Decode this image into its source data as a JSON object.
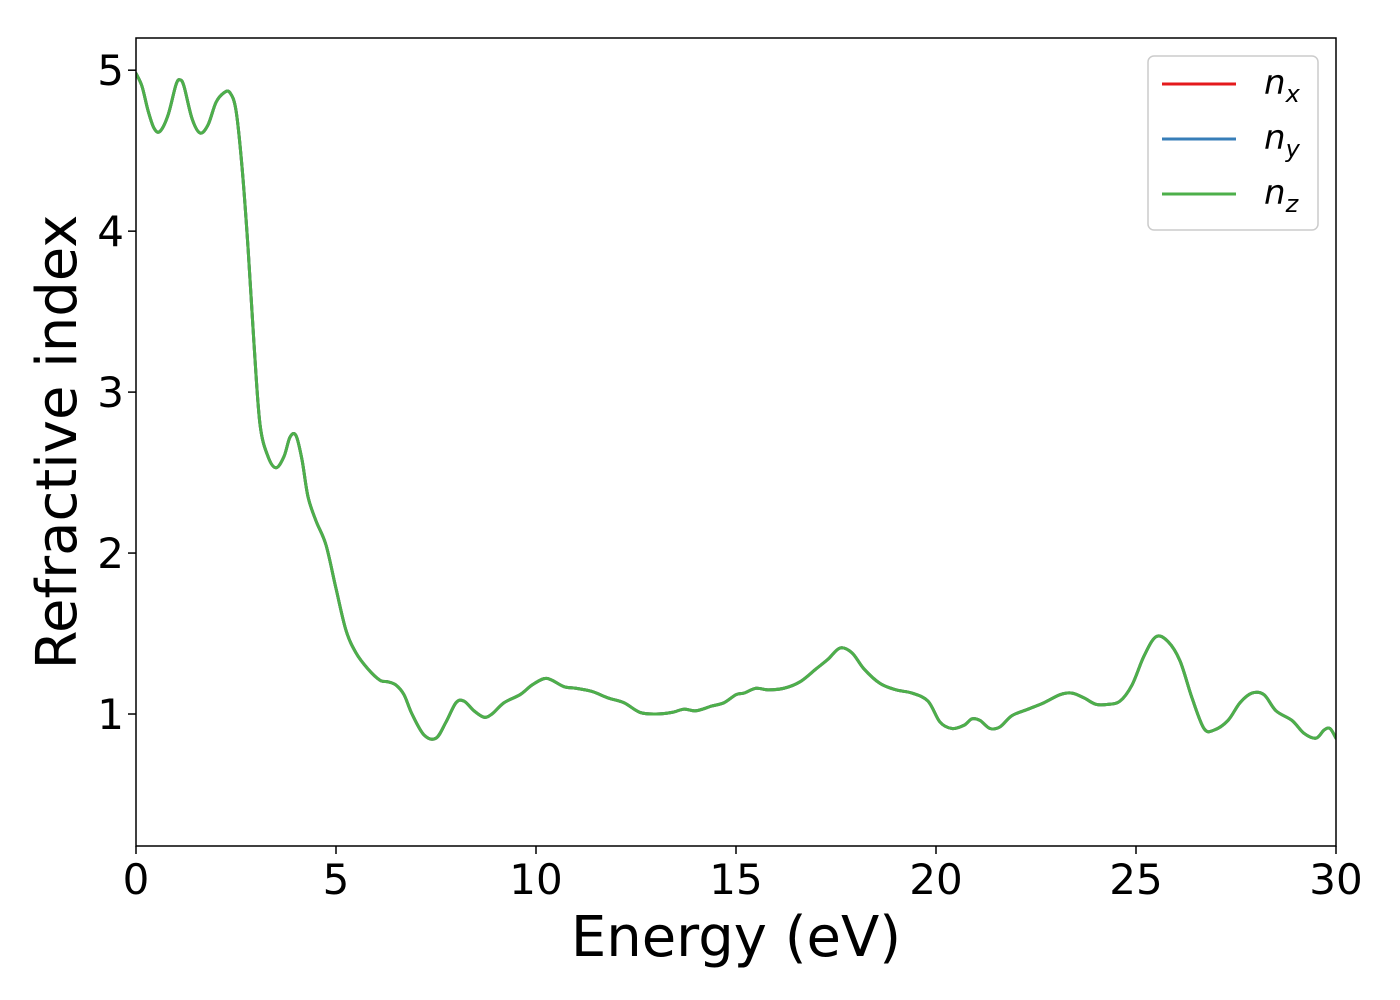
{
  "chart_data": {
    "type": "line",
    "xlabel": "Energy (eV)",
    "ylabel": "Refractive index",
    "xlim": [
      0,
      30
    ],
    "ylim": [
      0.18,
      5.2
    ],
    "xticks": [
      0,
      5,
      10,
      15,
      20,
      25,
      30
    ],
    "yticks": [
      1,
      2,
      3,
      4,
      5
    ],
    "grid": false,
    "legend_position": "top-right",
    "series": [
      {
        "name": "n",
        "subscript": "x",
        "color": "#e41a1c",
        "x": [
          0,
          0.15,
          0.3,
          0.45,
          0.6,
          0.8,
          1.0,
          1.1,
          1.2,
          1.4,
          1.6,
          1.8,
          2.0,
          2.2,
          2.35,
          2.5,
          2.65,
          2.8,
          2.95,
          3.1,
          3.3,
          3.5,
          3.7,
          3.85,
          4.0,
          4.15,
          4.3,
          4.5,
          4.75,
          5.0,
          5.25,
          5.5,
          5.8,
          6.1,
          6.3,
          6.5,
          6.7,
          6.9,
          7.2,
          7.5,
          7.75,
          8.0,
          8.2,
          8.45,
          8.7,
          8.9,
          9.2,
          9.6,
          9.9,
          10.2,
          10.4,
          10.7,
          11.0,
          11.4,
          11.8,
          12.2,
          12.6,
          13.0,
          13.4,
          13.7,
          14.0,
          14.4,
          14.7,
          15.0,
          15.2,
          15.5,
          15.8,
          16.2,
          16.6,
          17.0,
          17.3,
          17.6,
          17.9,
          18.2,
          18.6,
          19.0,
          19.4,
          19.8,
          20.1,
          20.4,
          20.7,
          20.9,
          21.1,
          21.35,
          21.6,
          21.9,
          22.3,
          22.7,
          23.1,
          23.4,
          23.7,
          24.0,
          24.3,
          24.6,
          24.9,
          25.2,
          25.5,
          25.8,
          26.1,
          26.4,
          26.7,
          26.95,
          27.3,
          27.6,
          27.9,
          28.2,
          28.5,
          28.9,
          29.2,
          29.5,
          29.7,
          29.85,
          30.0
        ],
        "y": [
          4.98,
          4.9,
          4.75,
          4.64,
          4.62,
          4.72,
          4.91,
          4.94,
          4.9,
          4.7,
          4.61,
          4.66,
          4.8,
          4.86,
          4.86,
          4.75,
          4.4,
          3.9,
          3.3,
          2.8,
          2.6,
          2.53,
          2.6,
          2.72,
          2.73,
          2.58,
          2.35,
          2.2,
          2.05,
          1.78,
          1.52,
          1.38,
          1.28,
          1.21,
          1.2,
          1.18,
          1.12,
          1.0,
          0.87,
          0.85,
          0.95,
          1.07,
          1.08,
          1.02,
          0.98,
          1.0,
          1.07,
          1.12,
          1.18,
          1.22,
          1.21,
          1.17,
          1.16,
          1.14,
          1.1,
          1.07,
          1.01,
          1.0,
          1.01,
          1.03,
          1.02,
          1.05,
          1.07,
          1.12,
          1.13,
          1.16,
          1.15,
          1.16,
          1.2,
          1.28,
          1.34,
          1.41,
          1.38,
          1.28,
          1.19,
          1.15,
          1.13,
          1.08,
          0.95,
          0.91,
          0.93,
          0.97,
          0.96,
          0.91,
          0.92,
          0.99,
          1.03,
          1.07,
          1.12,
          1.13,
          1.1,
          1.06,
          1.06,
          1.08,
          1.18,
          1.36,
          1.48,
          1.45,
          1.33,
          1.1,
          0.91,
          0.9,
          0.96,
          1.07,
          1.13,
          1.12,
          1.02,
          0.96,
          0.88,
          0.85,
          0.9,
          0.91,
          0.85
        ]
      },
      {
        "name": "n",
        "subscript": "y",
        "color": "#377eb8",
        "x": [
          0,
          0.15,
          0.3,
          0.45,
          0.6,
          0.8,
          1.0,
          1.1,
          1.2,
          1.4,
          1.6,
          1.8,
          2.0,
          2.2,
          2.35,
          2.5,
          2.65,
          2.8,
          2.95,
          3.1,
          3.3,
          3.5,
          3.7,
          3.85,
          4.0,
          4.15,
          4.3,
          4.5,
          4.75,
          5.0,
          5.25,
          5.5,
          5.8,
          6.1,
          6.3,
          6.5,
          6.7,
          6.9,
          7.2,
          7.5,
          7.75,
          8.0,
          8.2,
          8.45,
          8.7,
          8.9,
          9.2,
          9.6,
          9.9,
          10.2,
          10.4,
          10.7,
          11.0,
          11.4,
          11.8,
          12.2,
          12.6,
          13.0,
          13.4,
          13.7,
          14.0,
          14.4,
          14.7,
          15.0,
          15.2,
          15.5,
          15.8,
          16.2,
          16.6,
          17.0,
          17.3,
          17.6,
          17.9,
          18.2,
          18.6,
          19.0,
          19.4,
          19.8,
          20.1,
          20.4,
          20.7,
          20.9,
          21.1,
          21.35,
          21.6,
          21.9,
          22.3,
          22.7,
          23.1,
          23.4,
          23.7,
          24.0,
          24.3,
          24.6,
          24.9,
          25.2,
          25.5,
          25.8,
          26.1,
          26.4,
          26.7,
          26.95,
          27.3,
          27.6,
          27.9,
          28.2,
          28.5,
          28.9,
          29.2,
          29.5,
          29.7,
          29.85,
          30.0
        ],
        "y": [
          4.98,
          4.9,
          4.75,
          4.64,
          4.62,
          4.72,
          4.91,
          4.94,
          4.9,
          4.7,
          4.61,
          4.66,
          4.8,
          4.86,
          4.86,
          4.75,
          4.4,
          3.9,
          3.3,
          2.8,
          2.6,
          2.53,
          2.6,
          2.72,
          2.73,
          2.58,
          2.35,
          2.2,
          2.05,
          1.78,
          1.52,
          1.38,
          1.28,
          1.21,
          1.2,
          1.18,
          1.12,
          1.0,
          0.87,
          0.85,
          0.95,
          1.07,
          1.08,
          1.02,
          0.98,
          1.0,
          1.07,
          1.12,
          1.18,
          1.22,
          1.21,
          1.17,
          1.16,
          1.14,
          1.1,
          1.07,
          1.01,
          1.0,
          1.01,
          1.03,
          1.02,
          1.05,
          1.07,
          1.12,
          1.13,
          1.16,
          1.15,
          1.16,
          1.2,
          1.28,
          1.34,
          1.41,
          1.38,
          1.28,
          1.19,
          1.15,
          1.13,
          1.08,
          0.95,
          0.91,
          0.93,
          0.97,
          0.96,
          0.91,
          0.92,
          0.99,
          1.03,
          1.07,
          1.12,
          1.13,
          1.1,
          1.06,
          1.06,
          1.08,
          1.18,
          1.36,
          1.48,
          1.45,
          1.33,
          1.1,
          0.91,
          0.9,
          0.96,
          1.07,
          1.13,
          1.12,
          1.02,
          0.96,
          0.88,
          0.85,
          0.9,
          0.91,
          0.85
        ]
      },
      {
        "name": "n",
        "subscript": "z",
        "color": "#4daf4a",
        "x": [
          0,
          0.15,
          0.3,
          0.45,
          0.6,
          0.8,
          1.0,
          1.1,
          1.2,
          1.4,
          1.6,
          1.8,
          2.0,
          2.2,
          2.35,
          2.5,
          2.65,
          2.8,
          2.95,
          3.1,
          3.3,
          3.5,
          3.7,
          3.85,
          4.0,
          4.15,
          4.3,
          4.5,
          4.75,
          5.0,
          5.25,
          5.5,
          5.8,
          6.1,
          6.3,
          6.5,
          6.7,
          6.9,
          7.2,
          7.5,
          7.75,
          8.0,
          8.2,
          8.45,
          8.7,
          8.9,
          9.2,
          9.6,
          9.9,
          10.2,
          10.4,
          10.7,
          11.0,
          11.4,
          11.8,
          12.2,
          12.6,
          13.0,
          13.4,
          13.7,
          14.0,
          14.4,
          14.7,
          15.0,
          15.2,
          15.5,
          15.8,
          16.2,
          16.6,
          17.0,
          17.3,
          17.6,
          17.9,
          18.2,
          18.6,
          19.0,
          19.4,
          19.8,
          20.1,
          20.4,
          20.7,
          20.9,
          21.1,
          21.35,
          21.6,
          21.9,
          22.3,
          22.7,
          23.1,
          23.4,
          23.7,
          24.0,
          24.3,
          24.6,
          24.9,
          25.2,
          25.5,
          25.8,
          26.1,
          26.4,
          26.7,
          26.95,
          27.3,
          27.6,
          27.9,
          28.2,
          28.5,
          28.9,
          29.2,
          29.5,
          29.7,
          29.85,
          30.0
        ],
        "y": [
          4.98,
          4.9,
          4.75,
          4.64,
          4.62,
          4.72,
          4.91,
          4.94,
          4.9,
          4.7,
          4.61,
          4.66,
          4.8,
          4.86,
          4.86,
          4.75,
          4.4,
          3.9,
          3.3,
          2.8,
          2.6,
          2.53,
          2.6,
          2.72,
          2.73,
          2.58,
          2.35,
          2.2,
          2.05,
          1.78,
          1.52,
          1.38,
          1.28,
          1.21,
          1.2,
          1.18,
          1.12,
          1.0,
          0.87,
          0.85,
          0.95,
          1.07,
          1.08,
          1.02,
          0.98,
          1.0,
          1.07,
          1.12,
          1.18,
          1.22,
          1.21,
          1.17,
          1.16,
          1.14,
          1.1,
          1.07,
          1.01,
          1.0,
          1.01,
          1.03,
          1.02,
          1.05,
          1.07,
          1.12,
          1.13,
          1.16,
          1.15,
          1.16,
          1.2,
          1.28,
          1.34,
          1.41,
          1.38,
          1.28,
          1.19,
          1.15,
          1.13,
          1.08,
          0.95,
          0.91,
          0.93,
          0.97,
          0.96,
          0.91,
          0.92,
          0.99,
          1.03,
          1.07,
          1.12,
          1.13,
          1.1,
          1.06,
          1.06,
          1.08,
          1.18,
          1.36,
          1.48,
          1.45,
          1.33,
          1.1,
          0.91,
          0.9,
          0.96,
          1.07,
          1.13,
          1.12,
          1.02,
          0.96,
          0.88,
          0.85,
          0.9,
          0.91,
          0.85
        ]
      }
    ]
  }
}
